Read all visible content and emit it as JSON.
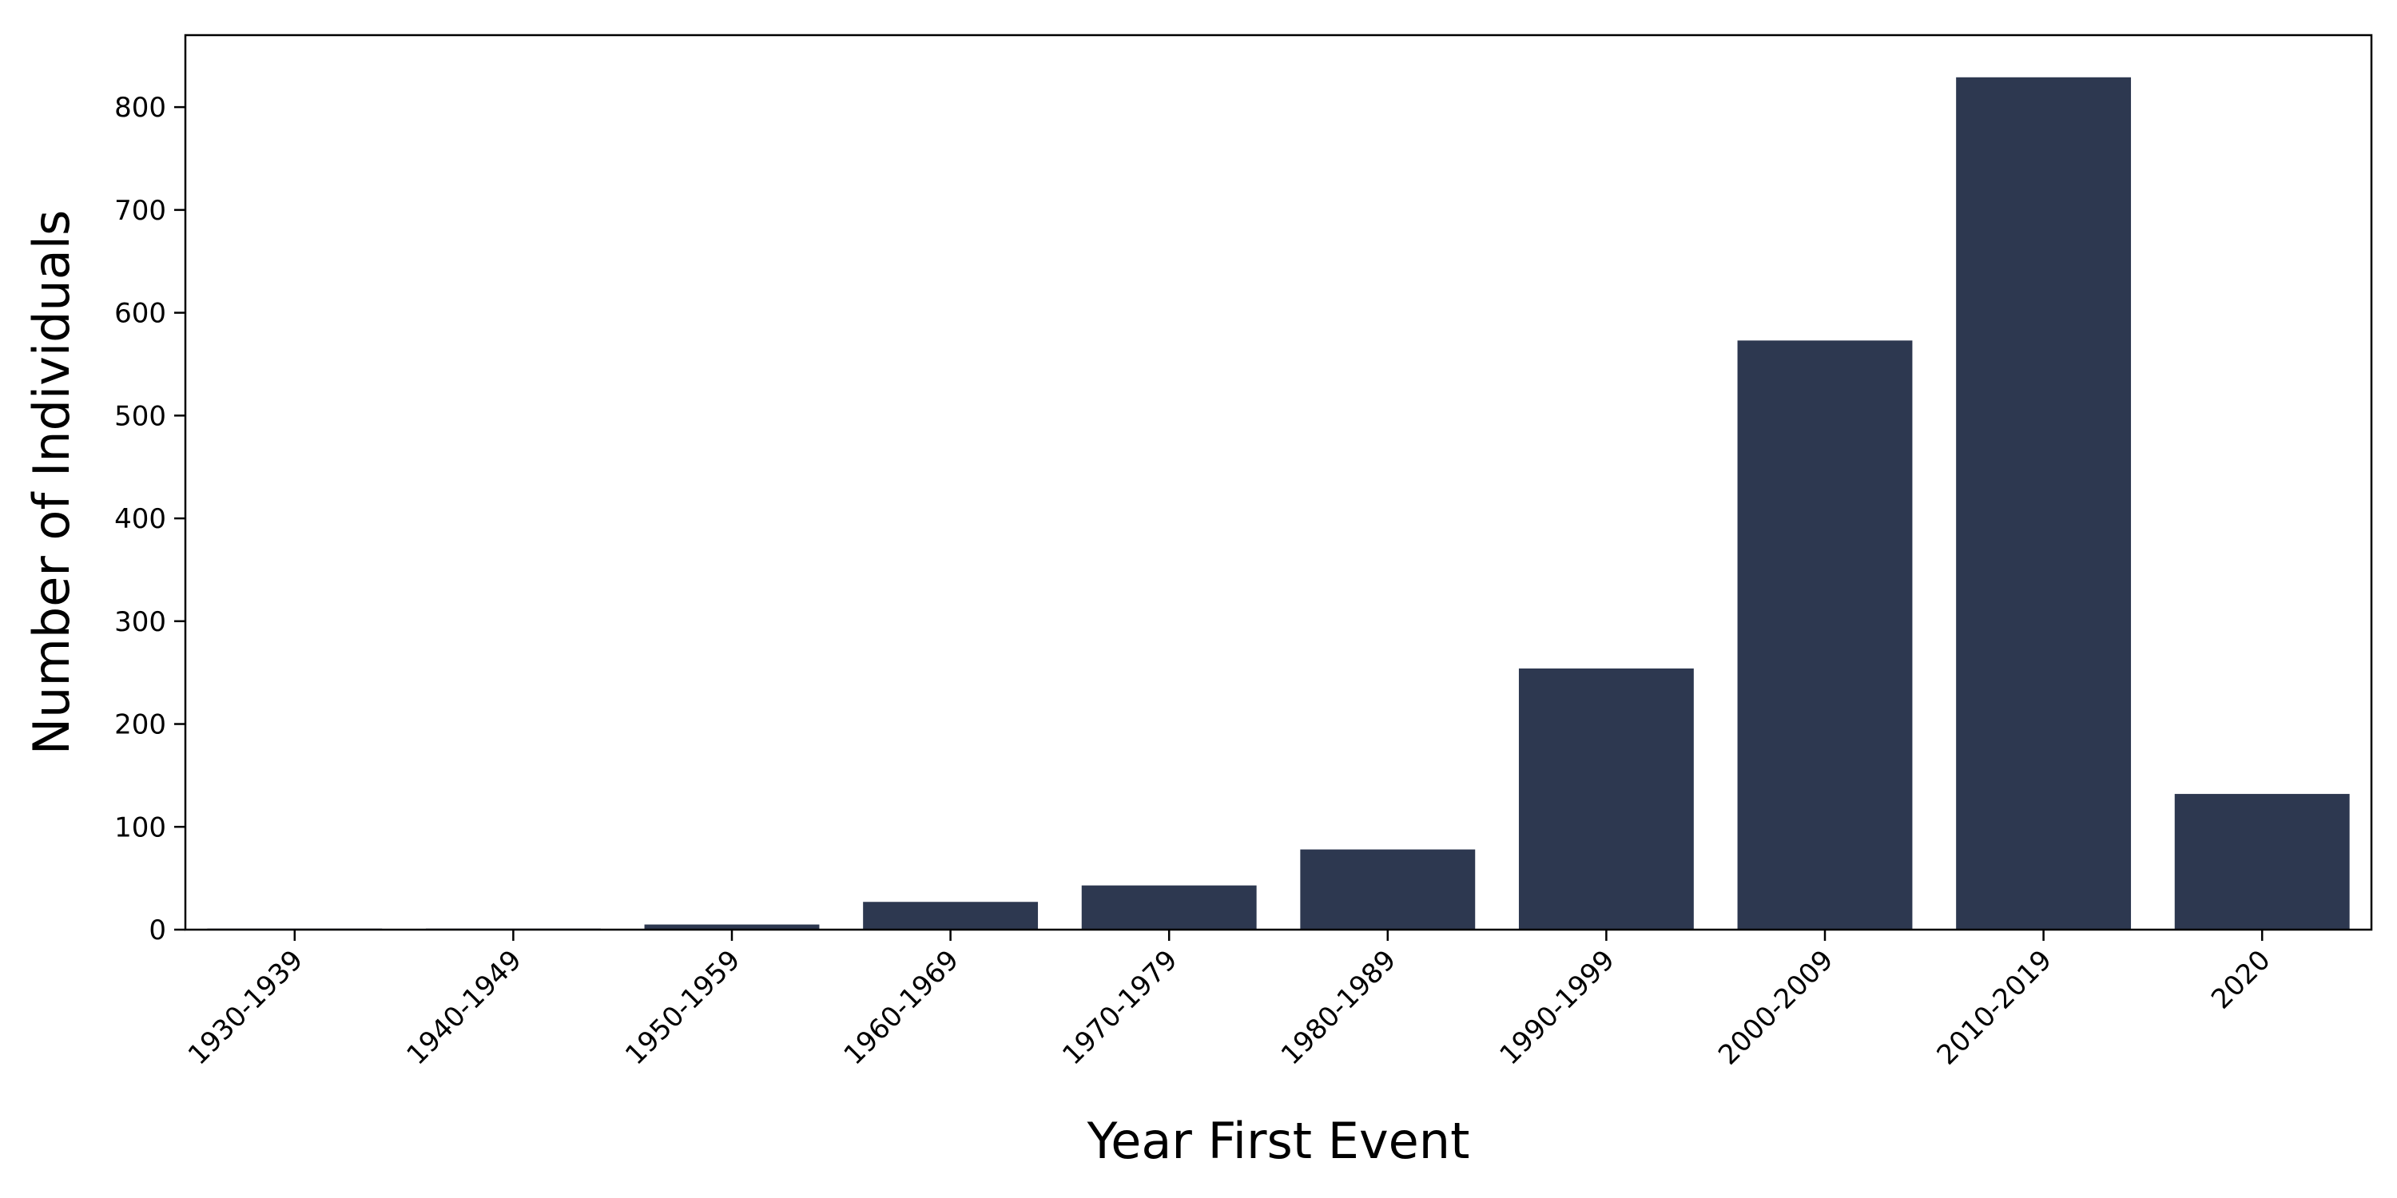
{
  "chart_data": {
    "type": "bar",
    "title": "",
    "xlabel": "Year First Event",
    "ylabel": "Number of Individuals",
    "categories": [
      "1930-1939",
      "1940-1949",
      "1950-1959",
      "1960-1969",
      "1970-1979",
      "1980-1989",
      "1990-1999",
      "2000-2009",
      "2010-2019",
      "2020"
    ],
    "values": [
      1,
      1,
      5,
      27,
      43,
      78,
      254,
      573,
      829,
      132
    ],
    "ylim": [
      0,
      870
    ],
    "yticks": [
      0,
      100,
      200,
      300,
      400,
      500,
      600,
      700,
      800
    ],
    "bar_color": "#2d3850",
    "grid": false,
    "legend": "none"
  }
}
